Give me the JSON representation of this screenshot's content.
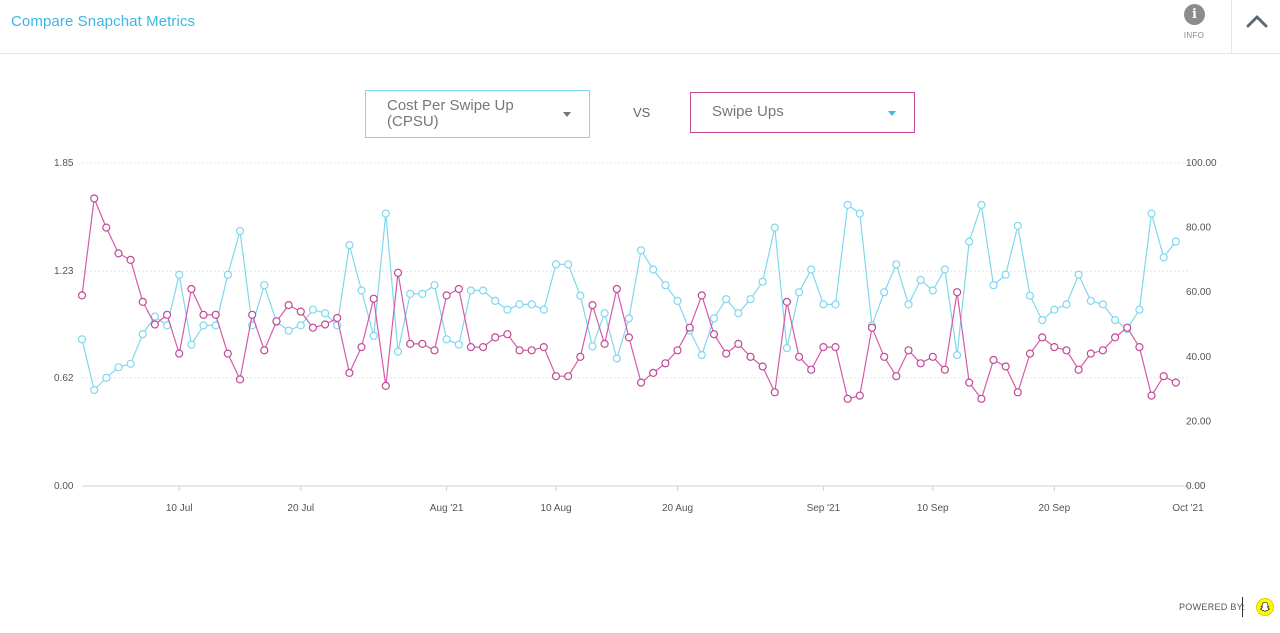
{
  "header": {
    "title": "Compare Snapchat Metrics",
    "info_label": "INFO"
  },
  "selectors": {
    "left": "Cost Per Swipe Up (CPSU)",
    "vs": "VS",
    "right": "Swipe Ups"
  },
  "footer": {
    "powered_by": "POWERED BY:"
  },
  "colors": {
    "cpsu": "#7fd8ee",
    "swipe_ups": "#d55aab"
  },
  "chart_data": {
    "type": "line",
    "x_start": "2021-07-02",
    "x_end": "2021-10-01",
    "x_ticks": [
      {
        "date": "2021-07-10",
        "label": "10 Jul"
      },
      {
        "date": "2021-07-20",
        "label": "20 Jul"
      },
      {
        "date": "2021-08-01",
        "label": "Aug '21"
      },
      {
        "date": "2021-08-10",
        "label": "10 Aug"
      },
      {
        "date": "2021-08-20",
        "label": "20 Aug"
      },
      {
        "date": "2021-09-01",
        "label": "Sep '21"
      },
      {
        "date": "2021-09-10",
        "label": "10 Sep"
      },
      {
        "date": "2021-09-20",
        "label": "20 Sep"
      },
      {
        "date": "2021-10-01",
        "label": "Oct '21"
      }
    ],
    "y_left": {
      "range": [
        0,
        1.85
      ],
      "ticks": [
        "0.00",
        "0.62",
        "1.23",
        "1.85"
      ],
      "tick_values": [
        0,
        0.62,
        1.23,
        1.85
      ]
    },
    "y_right": {
      "range": [
        0,
        100
      ],
      "ticks": [
        "0.00",
        "20.00",
        "40.00",
        "60.00",
        "80.00",
        "100.00"
      ],
      "tick_values": [
        0,
        20,
        40,
        60,
        80,
        100
      ]
    },
    "grid": true,
    "series": [
      {
        "axis": "left",
        "start_date": "2021-07-02",
        "values": [
          0.84,
          0.55,
          0.62,
          0.68,
          0.7,
          0.87,
          0.97,
          0.92,
          1.21,
          0.81,
          0.92,
          0.92,
          1.21,
          1.46,
          0.92,
          1.15,
          0.94,
          0.89,
          0.92,
          1.01,
          0.99,
          0.92,
          1.38,
          1.12,
          0.86,
          1.56,
          0.77,
          1.1,
          1.1,
          1.15,
          0.84,
          0.81,
          1.12,
          1.12,
          1.06,
          1.01,
          1.04,
          1.04,
          1.01,
          1.27,
          1.27,
          1.09,
          0.8,
          0.99,
          0.73,
          0.96,
          1.35,
          1.24,
          1.15,
          1.06,
          0.89,
          0.75,
          0.96,
          1.07,
          0.99,
          1.07,
          1.17,
          1.48,
          0.79,
          1.11,
          1.24,
          1.04,
          1.04,
          1.61,
          1.56,
          0.92,
          1.11,
          1.27,
          1.04,
          1.18,
          1.12,
          1.24,
          0.75,
          1.4,
          1.61,
          1.15,
          1.21,
          1.49,
          1.09,
          0.95,
          1.01,
          1.04,
          1.21,
          1.06,
          1.04,
          0.95,
          0.9,
          1.01,
          1.56,
          1.31,
          1.4
        ]
      },
      {
        "axis": "right",
        "start_date": "2021-07-02",
        "values": [
          59,
          89,
          80,
          72,
          70,
          57,
          50,
          53,
          41,
          61,
          53,
          53,
          41,
          33,
          53,
          42,
          51,
          56,
          54,
          49,
          50,
          52,
          35,
          43,
          58,
          31,
          66,
          44,
          44,
          42,
          59,
          61,
          43,
          43,
          46,
          47,
          42,
          42,
          43,
          34,
          34,
          40,
          56,
          44,
          61,
          46,
          32,
          35,
          38,
          42,
          49,
          59,
          47,
          41,
          44,
          40,
          37,
          29,
          57,
          40,
          36,
          43,
          43,
          27,
          28,
          49,
          40,
          34,
          42,
          38,
          40,
          36,
          60,
          32,
          27,
          39,
          37,
          29,
          41,
          46,
          43,
          42,
          36,
          41,
          42,
          46,
          49,
          43,
          28,
          34,
          32
        ]
      }
    ]
  }
}
